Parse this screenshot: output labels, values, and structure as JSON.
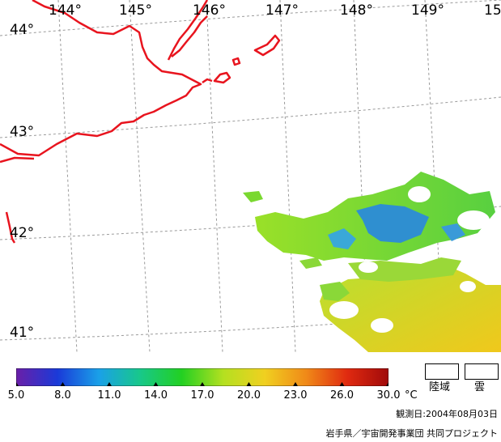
{
  "map": {
    "longitude_labels": [
      "144°",
      "145°",
      "146°",
      "147°",
      "148°",
      "149°",
      "15"
    ],
    "latitude_labels": [
      "44°",
      "43°",
      "42°",
      "41°"
    ],
    "colors": {
      "coastline": "#e8141e",
      "graticule": "#9a9a9a",
      "cool_sst": "#2f8fd0",
      "mid_sst": "#7ad830",
      "warm_sst": "#e8c820"
    }
  },
  "colorbar": {
    "colors": [
      "#6a1fa8",
      "#1a3ad8",
      "#1aa0e8",
      "#18c88a",
      "#22d022",
      "#b4e020",
      "#f0d020",
      "#f08a18",
      "#e02a10",
      "#a00a0a"
    ],
    "ticks": [
      "5.0",
      "8.0",
      "11.0",
      "14.0",
      "17.0",
      "20.0",
      "23.0",
      "26.0",
      "30.0"
    ],
    "unit": "°C"
  },
  "legend": {
    "land_label": "陸域",
    "cloud_label": "雲"
  },
  "footer": {
    "observation_date": "観測日:2004年08月03日",
    "credit": "岩手県／宇宙開発事業団  共同プロジェクト"
  }
}
